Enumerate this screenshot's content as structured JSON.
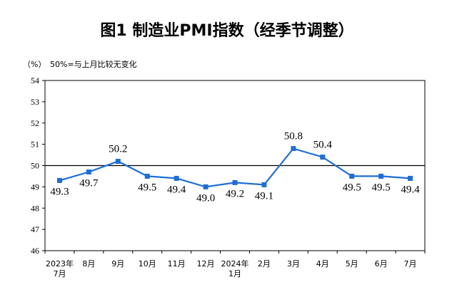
{
  "chart_data": {
    "type": "line",
    "title": "图1  制造业PMI指数（经季节调整）",
    "unit_label": "（%）",
    "note": "50%=与上月比较无变化",
    "ylim": [
      46,
      54
    ],
    "yticks": [
      "46",
      "47",
      "48",
      "49",
      "50",
      "51",
      "52",
      "53",
      "54"
    ],
    "reference_line": 50,
    "categories": [
      [
        "2023年",
        "7月"
      ],
      [
        "8月"
      ],
      [
        "9月"
      ],
      [
        "10月"
      ],
      [
        "11月"
      ],
      [
        "12月"
      ],
      [
        "2024年",
        "1月"
      ],
      [
        "2月"
      ],
      [
        "3月"
      ],
      [
        "4月"
      ],
      [
        "5月"
      ],
      [
        "6月"
      ],
      [
        "7月"
      ]
    ],
    "values": [
      49.3,
      49.7,
      50.2,
      49.5,
      49.4,
      49.0,
      49.2,
      49.1,
      50.8,
      50.4,
      49.5,
      49.5,
      49.4
    ],
    "labels": [
      "49.3",
      "49.7",
      "50.2",
      "49.5",
      "49.4",
      "49.0",
      "49.2",
      "49.1",
      "50.8",
      "50.4",
      "49.5",
      "49.5",
      "49.4"
    ],
    "grid": false,
    "line_color": "#1f6ed4",
    "axis_color": "#000000"
  }
}
